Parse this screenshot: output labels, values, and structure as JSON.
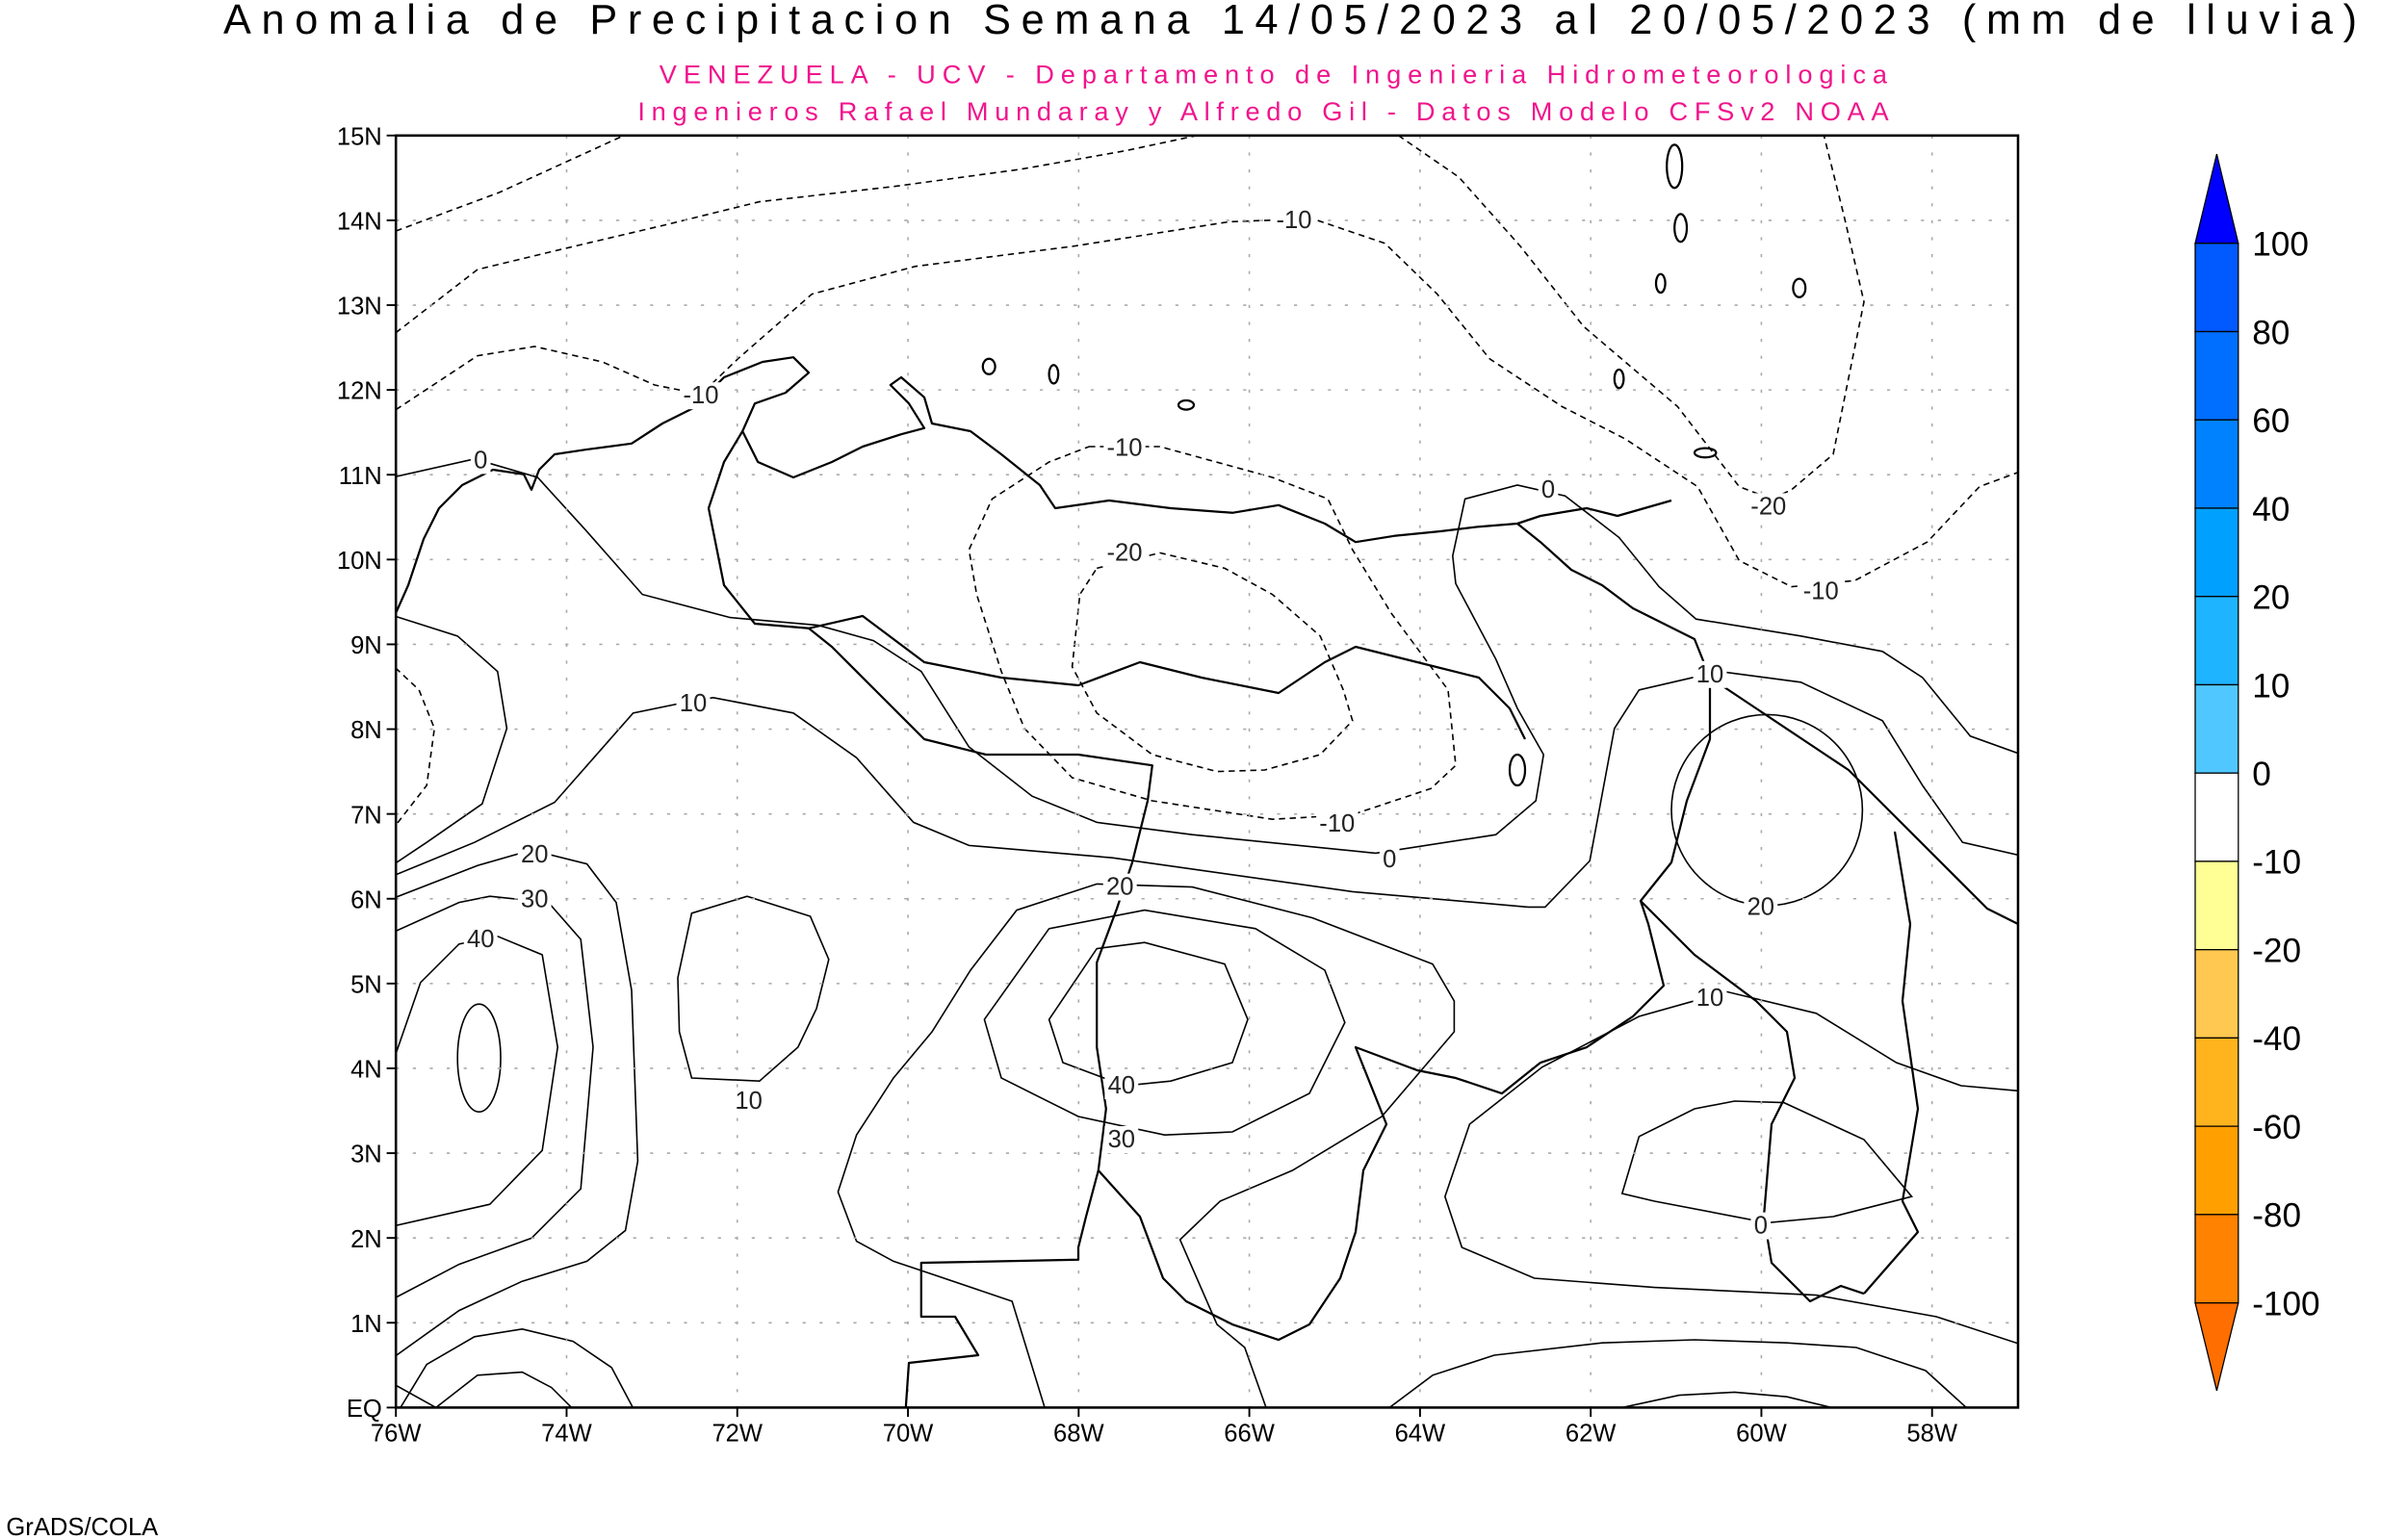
{
  "header": {
    "title": "Anomalia de Precipitacion Semana 14/05/2023 al 20/05/2023 (mm de lluvia)",
    "subtitle_1": "VENEZUELA - UCV - Departamento de Ingenieria Hidrometeorologica",
    "subtitle_2": "Ingenieros Rafael Mundaray y Alfredo Gil - Datos Modelo CFSv2 NOAA"
  },
  "map": {
    "y_ticks": [
      "15N",
      "14N",
      "13N",
      "12N",
      "11N",
      "10N",
      "9N",
      "8N",
      "7N",
      "6N",
      "5N",
      "4N",
      "3N",
      "2N",
      "1N",
      "EQ"
    ],
    "x_ticks": [
      "76W",
      "74W",
      "72W",
      "70W",
      "68W",
      "66W",
      "64W",
      "62W",
      "60W",
      "58W"
    ],
    "contour_labels": [
      "-10",
      "-10",
      "-10",
      "0",
      "0",
      "-20",
      "-20",
      "-10",
      "10",
      "10",
      "-10",
      "0",
      "20",
      "30",
      "40",
      "20",
      "20",
      "10",
      "10",
      "40",
      "30",
      "0"
    ],
    "fill_colors": {
      "neg20": "#ffc850",
      "neg10": "#ffff96",
      "zero": "#ffffff",
      "pos0": "#50c8ff",
      "pos10": "#1eb4ff",
      "pos20": "#00a0ff",
      "pos40": "#0082ff"
    }
  },
  "legend": {
    "labels": [
      "100",
      "80",
      "60",
      "40",
      "20",
      "10",
      "0",
      "-10",
      "-20",
      "-40",
      "-60",
      "-80",
      "-100"
    ],
    "colors": [
      "#005aff",
      "#006eff",
      "#0082ff",
      "#00a0ff",
      "#1eb4ff",
      "#50c8ff",
      "#ffffff",
      "#ffff96",
      "#ffc850",
      "#ffb41e",
      "#ffa000",
      "#ff8200"
    ],
    "top_arrow_color": "#0000ff",
    "bottom_arrow_color": "#ff6e00"
  },
  "footer": {
    "credit": "GrADS/COLA"
  }
}
